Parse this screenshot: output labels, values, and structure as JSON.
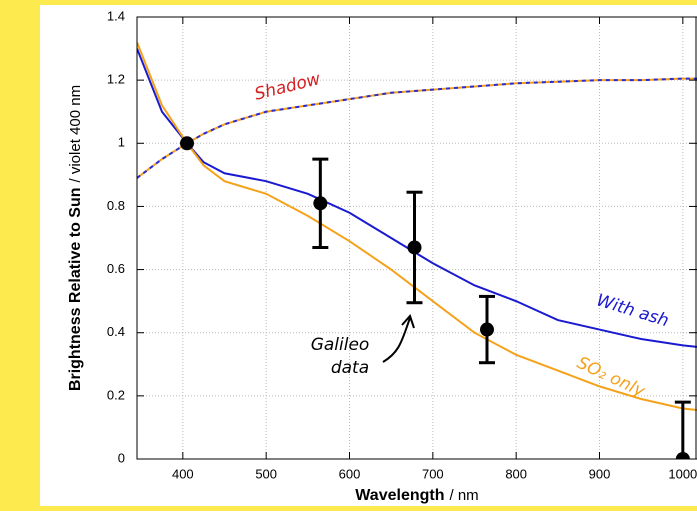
{
  "chart_data": {
    "type": "line",
    "xlabel": [
      "Wavelength",
      "/ nm"
    ],
    "ylabel": [
      "Brightness Relative to Sun",
      "/ violet 400 nm"
    ],
    "x": [
      345,
      375,
      405,
      425,
      450,
      500,
      550,
      600,
      650,
      700,
      750,
      800,
      850,
      900,
      950,
      1000,
      1017
    ],
    "series": [
      {
        "name": "Shadow",
        "colors": [
          "#f5a21b",
          "#2b2bd6"
        ],
        "dashed": true,
        "label_color": "#d42020",
        "values": [
          0.89,
          0.95,
          1.0,
          1.03,
          1.06,
          1.1,
          1.12,
          1.14,
          1.16,
          1.17,
          1.18,
          1.19,
          1.195,
          1.2,
          1.2,
          1.205,
          1.205
        ]
      },
      {
        "name": "With ash",
        "color": "#1a1ad0",
        "values": [
          1.3,
          1.1,
          1.0,
          0.94,
          0.905,
          0.88,
          0.84,
          0.78,
          0.7,
          0.62,
          0.55,
          0.5,
          0.44,
          0.41,
          0.38,
          0.36,
          0.355
        ]
      },
      {
        "name": "SO₂ only",
        "color": "#f5a21b",
        "values": [
          1.32,
          1.12,
          1.0,
          0.93,
          0.88,
          0.84,
          0.77,
          0.69,
          0.6,
          0.5,
          0.4,
          0.33,
          0.28,
          0.23,
          0.19,
          0.16,
          0.155
        ]
      }
    ],
    "points": {
      "label_lines": [
        "Galileo",
        "data"
      ],
      "color": "#000000",
      "x": [
        405,
        565,
        678,
        765,
        1000
      ],
      "values": [
        1.0,
        0.81,
        0.67,
        0.41,
        0.0
      ],
      "errors": [
        null,
        0.14,
        0.175,
        0.105,
        0.18
      ]
    },
    "xlim": [
      345,
      1017
    ],
    "xticks": [
      400,
      500,
      600,
      700,
      800,
      900,
      1000
    ],
    "ylim": [
      0,
      1.4
    ],
    "yticks": [
      0,
      0.2,
      0.4,
      0.6,
      0.8,
      1,
      1.2,
      1.4
    ],
    "grid": true
  }
}
